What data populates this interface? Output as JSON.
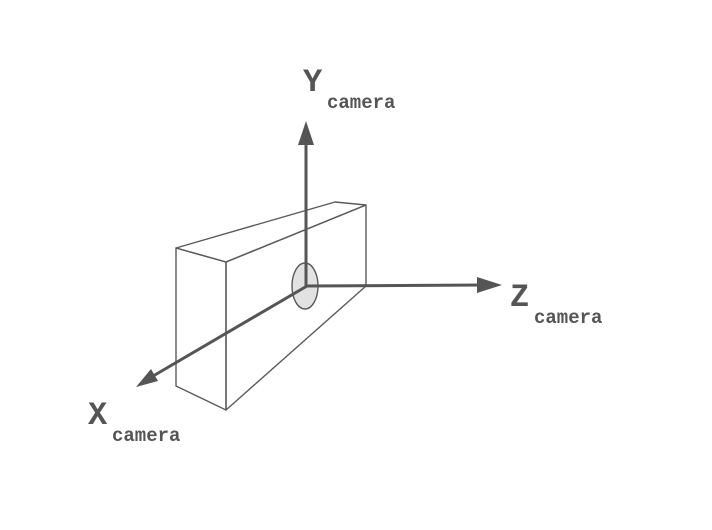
{
  "axes": {
    "y": {
      "letter": "Y",
      "subscript": "camera"
    },
    "z": {
      "letter": "Z",
      "subscript": "camera"
    },
    "x": {
      "letter": "X",
      "subscript": "camera"
    }
  },
  "colors": {
    "axis": "#555555",
    "outline": "#5a5a5a",
    "lens_fill": "#e2e2e2",
    "label": "#555555",
    "background": "#ffffff"
  }
}
